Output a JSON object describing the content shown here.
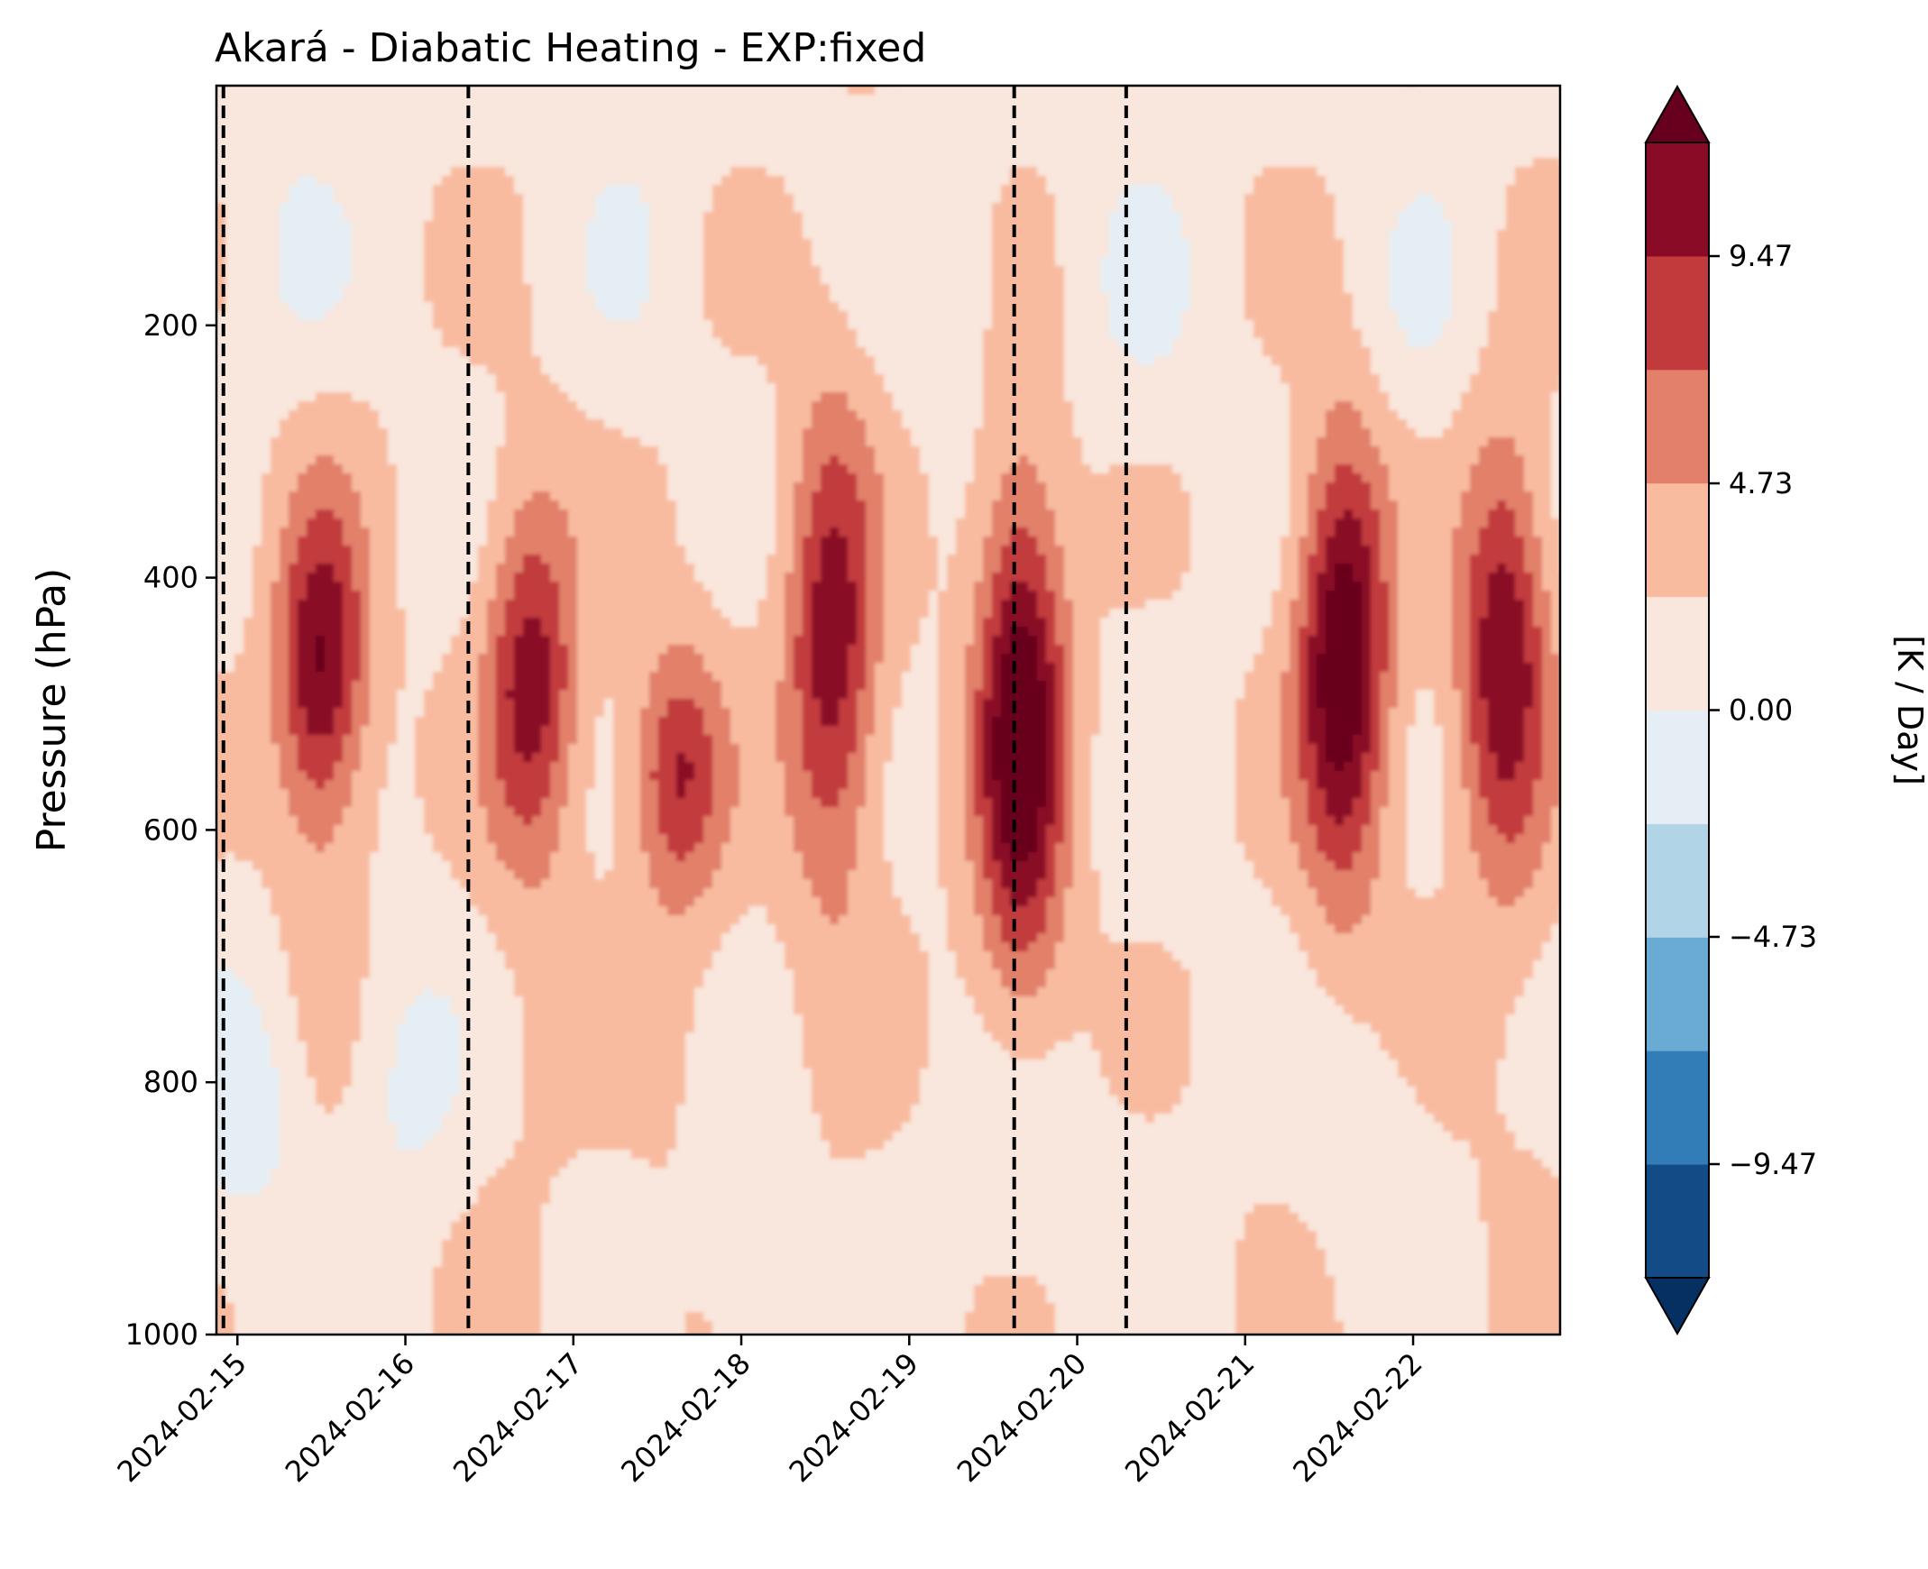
{
  "chart_data": {
    "type": "heatmap",
    "title": "Akará - Diabatic Heating - EXP:fixed",
    "xlabel": "",
    "ylabel": "Pressure (hPa)",
    "colorbar_label": "[K / Day]",
    "x_ticks": [
      "2024-02-15",
      "2024-02-16",
      "2024-02-17",
      "2024-02-18",
      "2024-02-19",
      "2024-02-20",
      "2024-02-21",
      "2024-02-22"
    ],
    "xlim": [
      "2024-02-14 21:00",
      "2024-02-22 21:00"
    ],
    "y_ticks": [
      200,
      400,
      600,
      800,
      1000
    ],
    "ylim": [
      1000,
      10
    ],
    "y_inverted": true,
    "colorbar_ticks": [
      -9.47,
      -4.73,
      0.0,
      4.73,
      9.47
    ],
    "colorbar_tick_labels": [
      "−9.47",
      "−4.73",
      "0.00",
      "4.73",
      "9.47"
    ],
    "colorbar_extend": "both",
    "levels": [
      -11.84,
      -9.47,
      -7.1,
      -4.73,
      -2.37,
      0.0,
      2.37,
      4.73,
      7.1,
      9.47,
      11.84
    ],
    "colormap": "RdBu_r",
    "colors": [
      "#053061",
      "#134b87",
      "#327cb8",
      "#69abd2",
      "#b1d4e7",
      "#e5eef4",
      "#f9e6dc",
      "#f8bba0",
      "#e2806b",
      "#c23b3c",
      "#8a0b25",
      "#67001f"
    ],
    "vertical_lines": [
      "2024-02-14 22:00",
      "2024-02-16 09:00",
      "2024-02-19 15:00",
      "2024-02-20 07:00"
    ],
    "vertical_line_style": "dashed",
    "heating_cells": [
      {
        "time": "2024-02-15 12:00",
        "pressure_top": 330,
        "pressure_bottom": 610,
        "peak": 8.9
      },
      {
        "time": "2024-02-16 18:00",
        "pressure_top": 330,
        "pressure_bottom": 630,
        "peak": 7.6
      },
      {
        "time": "2024-02-17 15:00",
        "pressure_top": 450,
        "pressure_bottom": 660,
        "peak": 6.2
      },
      {
        "time": "2024-02-18 13:00",
        "pressure_top": 250,
        "pressure_bottom": 650,
        "peak": 7.8
      },
      {
        "time": "2024-02-19 16:00",
        "pressure_top": 300,
        "pressure_bottom": 740,
        "peak": 11.0
      },
      {
        "time": "2024-02-21 14:00",
        "pressure_top": 280,
        "pressure_bottom": 650,
        "peak": 11.2
      },
      {
        "time": "2024-02-22 13:00",
        "pressure_top": 280,
        "pressure_bottom": 640,
        "peak": 8.4
      }
    ],
    "grid": false,
    "legend": "none"
  }
}
